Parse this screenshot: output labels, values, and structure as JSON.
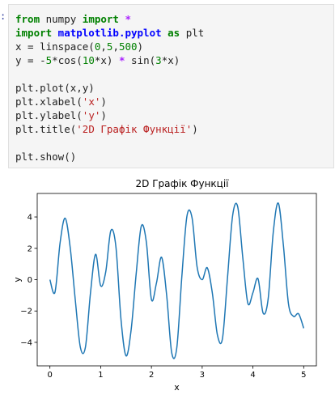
{
  "prompt": ":",
  "code_lines": [
    [
      {
        "t": "from",
        "c": "kw"
      },
      {
        "t": " numpy ",
        "c": "plain"
      },
      {
        "t": "import",
        "c": "kw"
      },
      {
        "t": " ",
        "c": "plain"
      },
      {
        "t": "*",
        "c": "op"
      }
    ],
    [
      {
        "t": "import",
        "c": "kw"
      },
      {
        "t": " matplotlib.pyplot ",
        "c": "mod"
      },
      {
        "t": "as",
        "c": "kw"
      },
      {
        "t": " plt",
        "c": "plain"
      }
    ],
    [
      {
        "t": "x = linspace(",
        "c": "plain"
      },
      {
        "t": "0",
        "c": "num"
      },
      {
        "t": ",",
        "c": "plain"
      },
      {
        "t": "5",
        "c": "num"
      },
      {
        "t": ",",
        "c": "plain"
      },
      {
        "t": "500",
        "c": "num"
      },
      {
        "t": ")",
        "c": "plain"
      }
    ],
    [
      {
        "t": "y = -",
        "c": "plain"
      },
      {
        "t": "5",
        "c": "num"
      },
      {
        "t": "*cos(",
        "c": "plain"
      },
      {
        "t": "10",
        "c": "num"
      },
      {
        "t": "*x) ",
        "c": "plain"
      },
      {
        "t": "*",
        "c": "op"
      },
      {
        "t": " sin(",
        "c": "plain"
      },
      {
        "t": "3",
        "c": "num"
      },
      {
        "t": "*x)",
        "c": "plain"
      }
    ],
    [],
    [
      {
        "t": "plt.plot(x,y)",
        "c": "plain"
      }
    ],
    [
      {
        "t": "plt.xlabel(",
        "c": "plain"
      },
      {
        "t": "'x'",
        "c": "str"
      },
      {
        "t": ")",
        "c": "plain"
      }
    ],
    [
      {
        "t": "plt.ylabel(",
        "c": "plain"
      },
      {
        "t": "'y'",
        "c": "str"
      },
      {
        "t": ")",
        "c": "plain"
      }
    ],
    [
      {
        "t": "plt.title(",
        "c": "plain"
      },
      {
        "t": "'2D Графік Функції'",
        "c": "str"
      },
      {
        "t": ")",
        "c": "plain"
      }
    ],
    [],
    [
      {
        "t": "plt.show()",
        "c": "plain"
      }
    ]
  ],
  "colors": {
    "line": "#1f77b4",
    "code_bg": "#f5f5f5"
  },
  "chart_data": {
    "type": "line",
    "title": "2D Графік Функції",
    "xlabel": "x",
    "ylabel": "y",
    "xlim": [
      -0.25,
      5.25
    ],
    "ylim": [
      -5.5,
      5.5
    ],
    "xticks": [
      0,
      1,
      2,
      3,
      4,
      5
    ],
    "xtick_labels": [
      "0",
      "1",
      "2",
      "3",
      "4",
      "5"
    ],
    "yticks": [
      -4,
      -2,
      0,
      2,
      4
    ],
    "ytick_labels": [
      "−4",
      "−2",
      "0",
      "2",
      "4"
    ],
    "grid": false,
    "series": [
      {
        "x": [
          0.0,
          0.1,
          0.2,
          0.3,
          0.4,
          0.5,
          0.6,
          0.7,
          0.8,
          0.9,
          1.0,
          1.1,
          1.2,
          1.3,
          1.4,
          1.5,
          1.6,
          1.7,
          1.8,
          1.9,
          2.0,
          2.1,
          2.2,
          2.3,
          2.4,
          2.5,
          2.6,
          2.7,
          2.8,
          2.9,
          3.0,
          3.1,
          3.2,
          3.3,
          3.4,
          3.5,
          3.6,
          3.7,
          3.8,
          3.9,
          4.0,
          4.1,
          4.2,
          4.3,
          4.4,
          4.5,
          4.6,
          4.7,
          4.8,
          4.9,
          5.0
        ],
        "y": [
          0.0,
          -0.8,
          2.34,
          3.92,
          2.04,
          -1.3,
          -4.32,
          -4.3,
          -0.83,
          1.62,
          -0.39,
          0.5,
          3.12,
          2.1,
          -2.52,
          -4.86,
          -3.21,
          0.39,
          3.41,
          2.4,
          -1.26,
          -0.2,
          1.43,
          -0.99,
          -4.67,
          -4.34,
          0.23,
          4.06,
          3.95,
          0.81,
          0.0,
          0.76,
          -0.85,
          -3.53,
          -3.75,
          0.17,
          4.09,
          4.65,
          1.4,
          -1.51,
          -0.83,
          0.06,
          -2.13,
          -1.22,
          3.01,
          4.88,
          2.19,
          -1.54,
          -2.34,
          -2.18,
          -3.1
        ]
      }
    ]
  }
}
